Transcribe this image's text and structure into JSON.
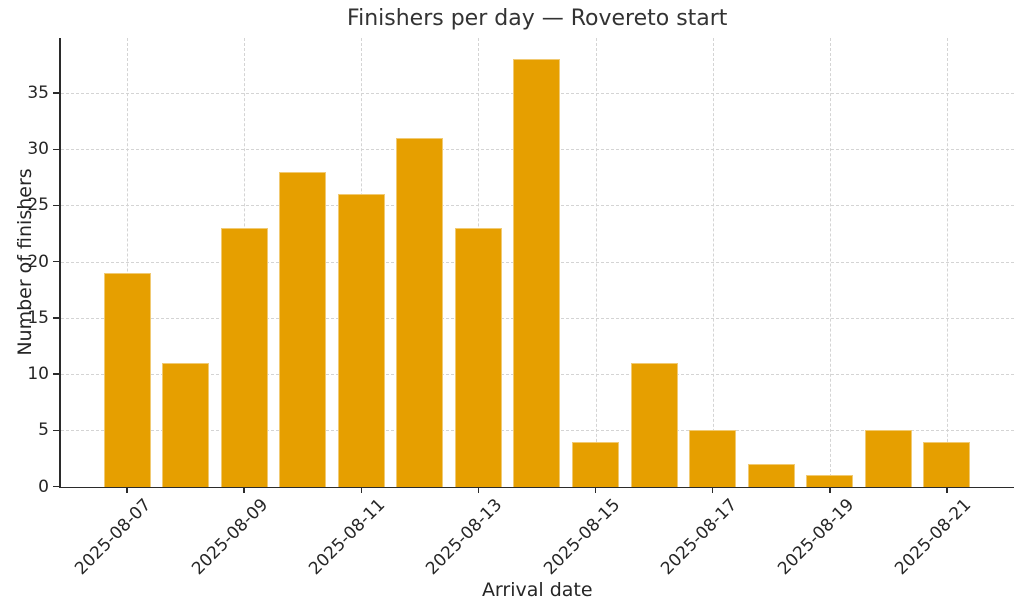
{
  "chart_data": {
    "type": "bar",
    "title": "Finishers per day — Rovereto start",
    "xlabel": "Arrival date",
    "ylabel": "Number of finishers",
    "categories": [
      "2025-08-07",
      "2025-08-08",
      "2025-08-09",
      "2025-08-10",
      "2025-08-11",
      "2025-08-12",
      "2025-08-13",
      "2025-08-14",
      "2025-08-15",
      "2025-08-16",
      "2025-08-17",
      "2025-08-18",
      "2025-08-19",
      "2025-08-20",
      "2025-08-21"
    ],
    "values": [
      19,
      11,
      23,
      28,
      26,
      31,
      23,
      38,
      4,
      11,
      5,
      2,
      1,
      5,
      4
    ],
    "yticks": [
      0,
      5,
      10,
      15,
      20,
      25,
      30,
      35
    ],
    "ytick_labels": [
      "0",
      "5",
      "10",
      "15",
      "20",
      "25",
      "30",
      "35"
    ],
    "xtick_label_indices": [
      0,
      2,
      4,
      6,
      8,
      10,
      12,
      14
    ],
    "xtick_labels": [
      "2025-08-07",
      "2025-08-09",
      "2025-08-11",
      "2025-08-13",
      "2025-08-15",
      "2025-08-17",
      "2025-08-19",
      "2025-08-21"
    ],
    "xtick_rotation_deg": 45,
    "ylim": [
      0,
      39.9
    ],
    "grid": true,
    "grid_style": "dashed",
    "legend_position": "none",
    "bar_color": "#E69F00",
    "grid_color": "#d4d4d4",
    "axis_color": "#2b2b2b",
    "text_color": "#262626"
  }
}
